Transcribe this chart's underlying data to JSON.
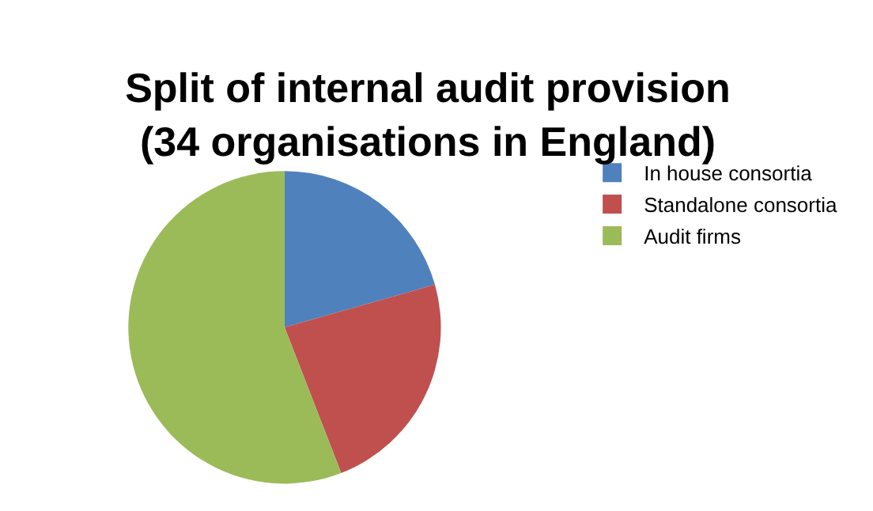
{
  "chart_data": {
    "type": "pie",
    "title": "Split of internal audit provision\n(34 organisations in England)",
    "categories": [
      "In house consortia",
      "Standalone consortia",
      "Audit firms"
    ],
    "values": [
      20.6,
      23.5,
      55.9
    ],
    "colors": [
      "#4f81bd",
      "#c0504d",
      "#9bbb59"
    ],
    "legend": "right"
  }
}
